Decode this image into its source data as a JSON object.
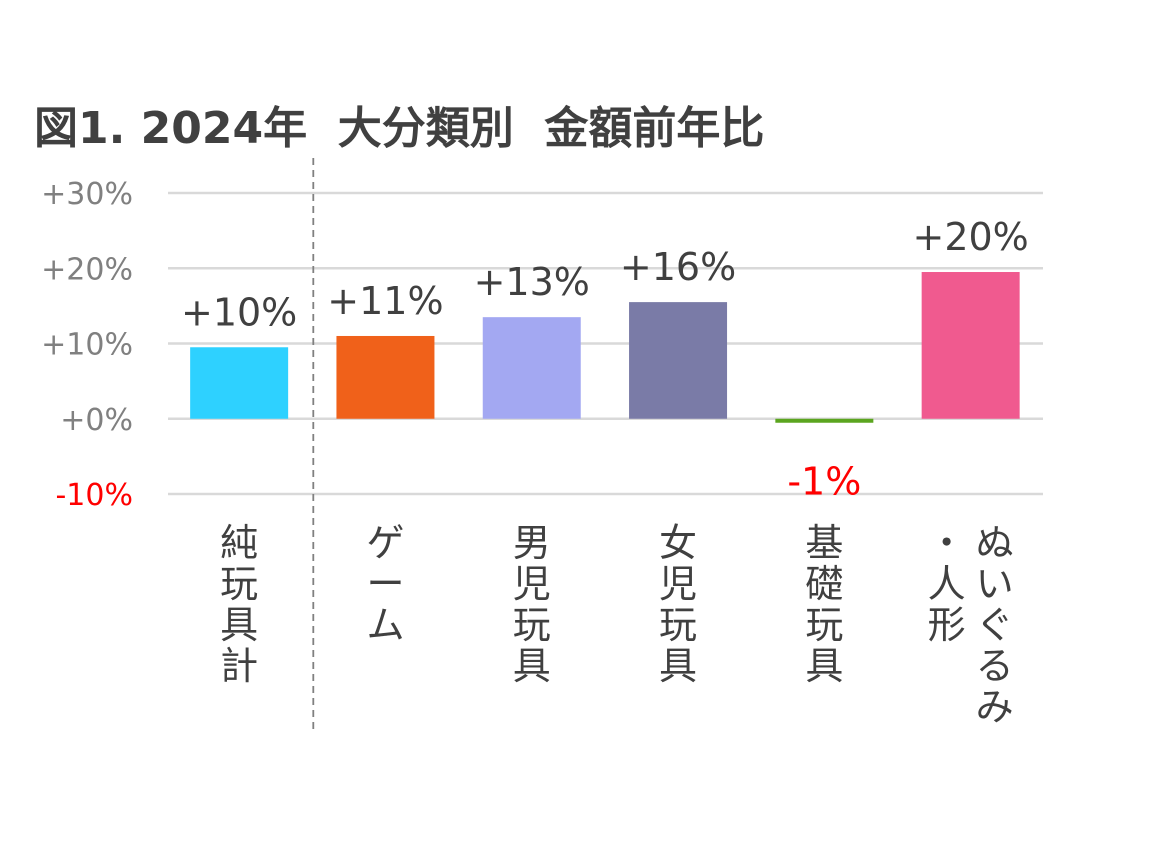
{
  "chart_data": {
    "type": "bar",
    "title": "図1. 2024年  大分類別  金額前年比",
    "categories": [
      "純玩具計",
      "ゲーム",
      "男児玩具",
      "女児玩具",
      "基礎玩具",
      "ぬいぐるみ・人形"
    ],
    "category_lines": [
      [
        "純玩具計"
      ],
      [
        "ゲーム"
      ],
      [
        "男児玩具"
      ],
      [
        "女児玩具"
      ],
      [
        "基礎玩具"
      ],
      [
        "ぬいぐるみ",
        "・人形"
      ]
    ],
    "values": [
      9.5,
      11,
      13.5,
      15.5,
      -0.5,
      19.5
    ],
    "data_labels": [
      "+10%",
      "+11%",
      "+13%",
      "+16%",
      "-1%",
      "+20%"
    ],
    "bar_colors": [
      "#2ED1FF",
      "#F0611A",
      "#A3A8F2",
      "#7A7BA7",
      "#5BA51F",
      "#F05A8F"
    ],
    "label_colors": [
      "#404040",
      "#404040",
      "#404040",
      "#404040",
      "#FF0000",
      "#404040"
    ],
    "ylim": [
      -10,
      30
    ],
    "yticks": [
      -10,
      0,
      10,
      20,
      30
    ],
    "ytick_labels": [
      "-10%",
      "+0%",
      "+10%",
      "+20%",
      "+30%"
    ],
    "ytick_colors": [
      "#FF0000",
      "#808080",
      "#808080",
      "#808080",
      "#808080"
    ],
    "grid": true,
    "separator_after_index": 0
  }
}
